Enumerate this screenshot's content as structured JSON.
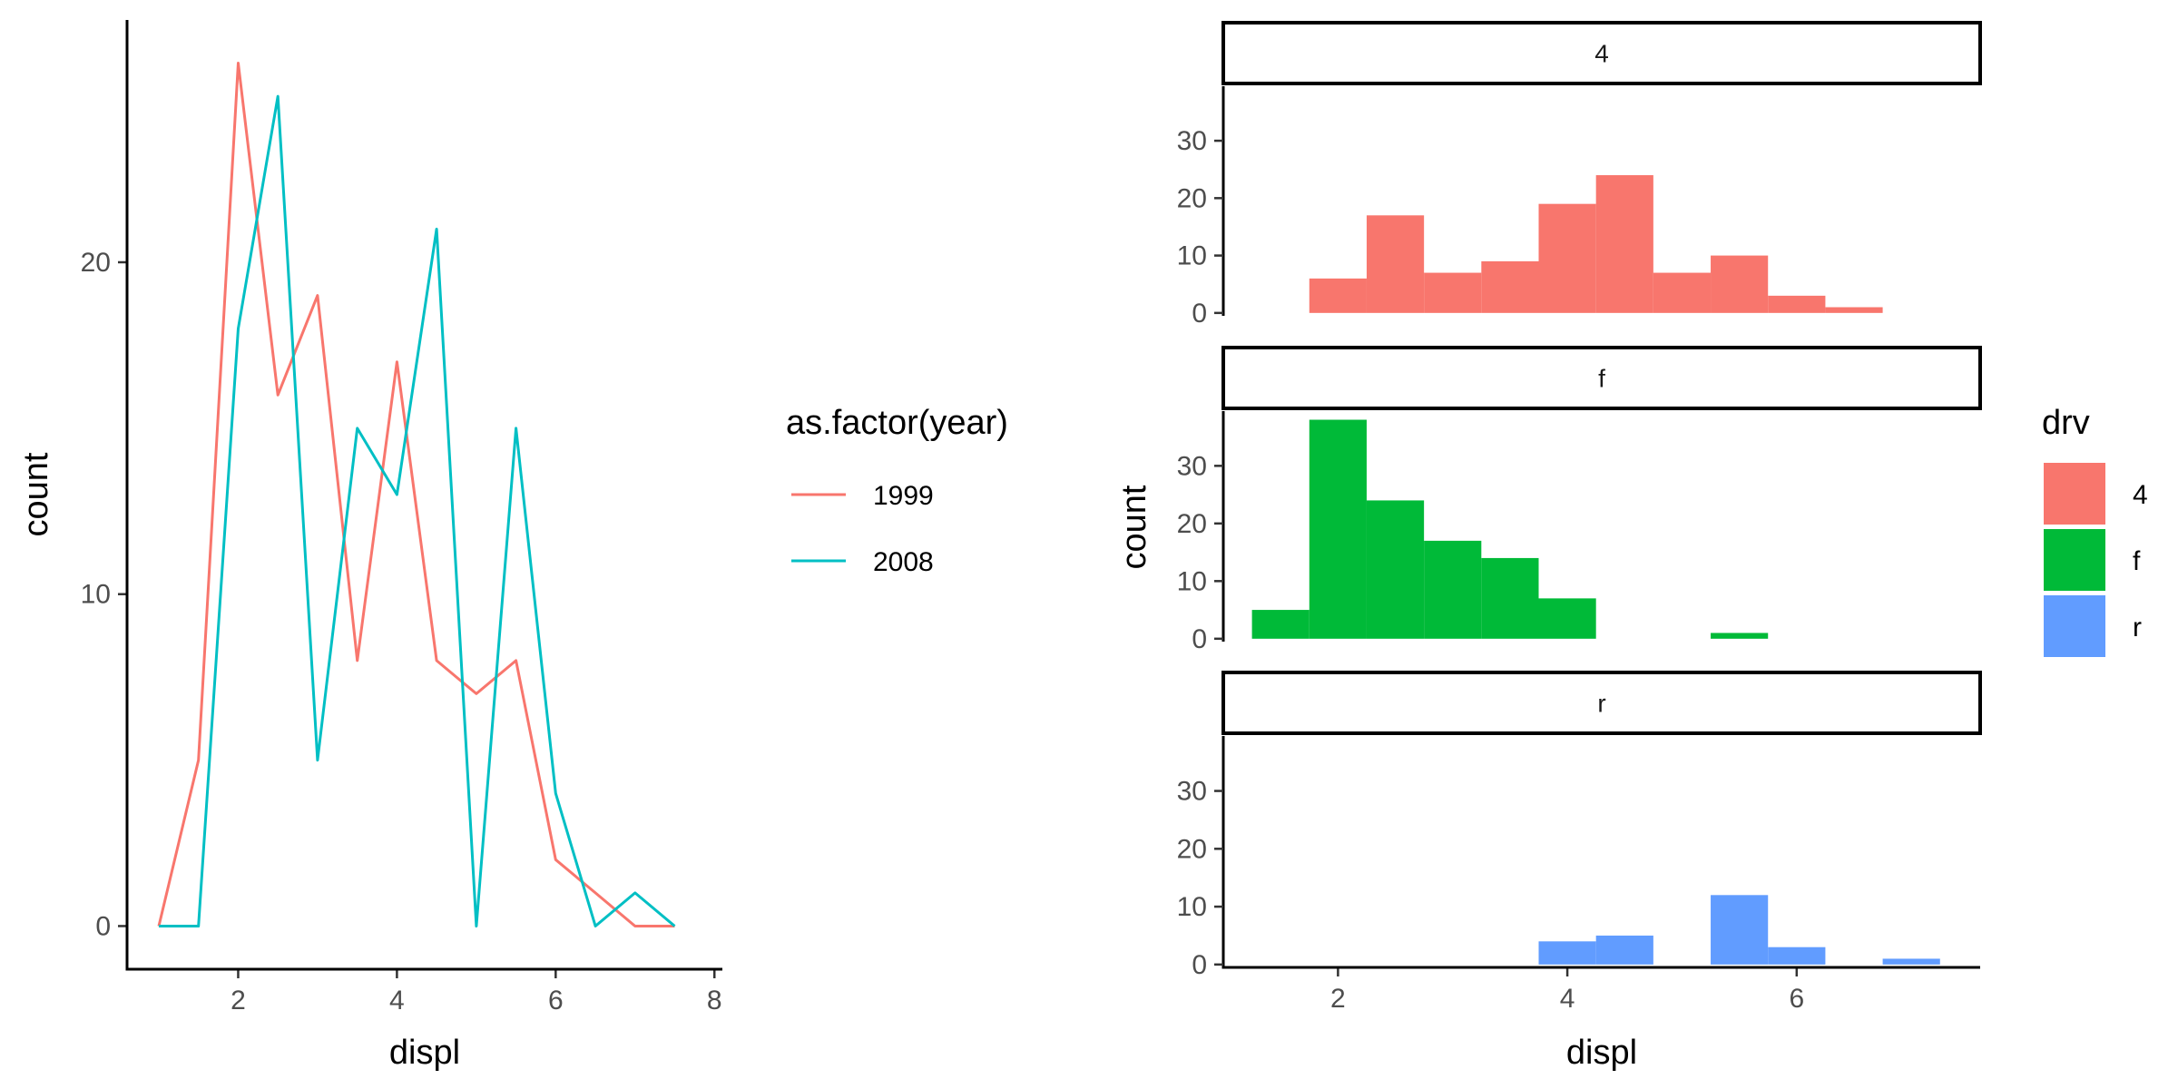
{
  "chart_data": [
    {
      "type": "line",
      "xlabel": "displ",
      "ylabel": "count",
      "xlim": [
        0.6,
        8.1
      ],
      "ylim": [
        -1.3,
        27.3
      ],
      "x_ticks": [
        2,
        4,
        6,
        8
      ],
      "y_ticks": [
        0,
        10,
        20
      ],
      "x_tick_labels": [
        "2",
        "4",
        "6",
        "8"
      ],
      "y_tick_labels": [
        "0",
        "10",
        "20"
      ],
      "grid": false,
      "legend": {
        "title": "as.factor(year)",
        "placement": "right"
      },
      "series": [
        {
          "name": "1999",
          "color": "#F8766D",
          "x": [
            1.0,
            1.5,
            2.0,
            2.5,
            3.0,
            3.5,
            4.0,
            4.5,
            5.0,
            5.5,
            6.0,
            6.5,
            7.0,
            7.5
          ],
          "y": [
            0,
            5,
            26,
            16,
            19,
            8,
            17,
            8,
            7,
            8,
            2,
            1,
            0,
            0
          ]
        },
        {
          "name": "2008",
          "color": "#00BFC4",
          "x": [
            1.0,
            1.5,
            2.0,
            2.5,
            3.0,
            3.5,
            4.0,
            4.5,
            5.0,
            5.5,
            6.0,
            6.5,
            7.0,
            7.5
          ],
          "y": [
            0,
            0,
            18,
            25,
            5,
            15,
            13,
            21,
            0,
            15,
            4,
            0,
            1,
            0
          ]
        }
      ]
    },
    {
      "type": "bar",
      "subtype": "faceted-histogram",
      "xlabel": "displ",
      "ylabel": "count",
      "xlim": [
        1.0,
        7.6
      ],
      "ylim": [
        -0.5,
        39.5
      ],
      "x_ticks": [
        2,
        4,
        6
      ],
      "y_ticks": [
        0,
        10,
        20,
        30
      ],
      "x_tick_labels": [
        "2",
        "4",
        "6"
      ],
      "y_tick_labels": [
        "0",
        "10",
        "20",
        "30"
      ],
      "bin_width": 0.5,
      "grid": false,
      "legend": {
        "title": "drv",
        "placement": "right",
        "items": [
          {
            "label": "4",
            "color": "#F8766D"
          },
          {
            "label": "f",
            "color": "#00BA38"
          },
          {
            "label": "r",
            "color": "#619CFF"
          }
        ]
      },
      "facets": [
        {
          "label": "4",
          "color": "#F8766D",
          "bins": [
            {
              "x": 2.0,
              "count": 6
            },
            {
              "x": 2.5,
              "count": 17
            },
            {
              "x": 3.0,
              "count": 7
            },
            {
              "x": 3.5,
              "count": 9
            },
            {
              "x": 4.0,
              "count": 19
            },
            {
              "x": 4.5,
              "count": 24
            },
            {
              "x": 5.0,
              "count": 7
            },
            {
              "x": 5.5,
              "count": 10
            },
            {
              "x": 6.0,
              "count": 3
            },
            {
              "x": 6.5,
              "count": 1
            }
          ]
        },
        {
          "label": "f",
          "color": "#00BA38",
          "bins": [
            {
              "x": 1.5,
              "count": 5
            },
            {
              "x": 2.0,
              "count": 38
            },
            {
              "x": 2.5,
              "count": 24
            },
            {
              "x": 3.0,
              "count": 17
            },
            {
              "x": 3.5,
              "count": 14
            },
            {
              "x": 4.0,
              "count": 7
            },
            {
              "x": 5.5,
              "count": 1
            }
          ]
        },
        {
          "label": "r",
          "color": "#619CFF",
          "bins": [
            {
              "x": 4.0,
              "count": 4
            },
            {
              "x": 4.5,
              "count": 5
            },
            {
              "x": 5.5,
              "count": 12
            },
            {
              "x": 6.0,
              "count": 3
            },
            {
              "x": 7.0,
              "count": 1
            }
          ]
        }
      ]
    }
  ]
}
